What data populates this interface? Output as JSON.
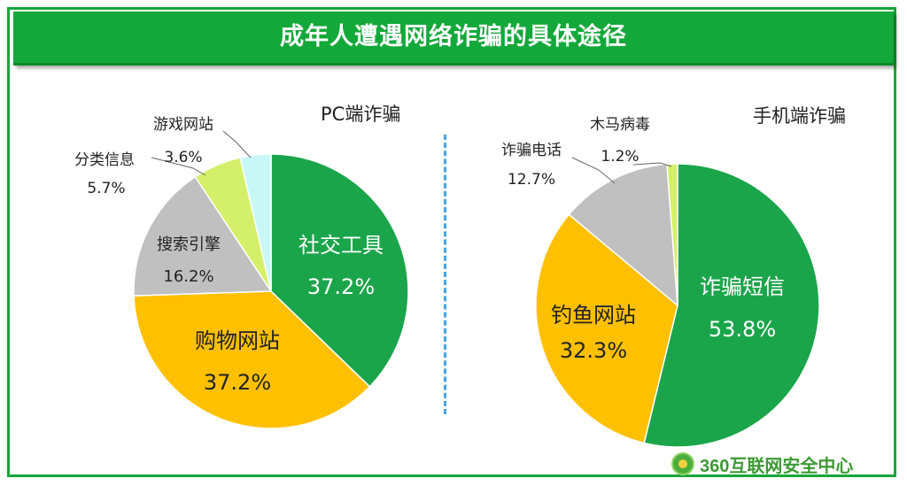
{
  "banner": {
    "title": "成年人遭遇网络诈骗的具体途径"
  },
  "brand": {
    "text": "360互联网安全中心",
    "icon": "360-shield-icon"
  },
  "colors": {
    "green": "#1aa54a",
    "orange": "#ffc000",
    "gray": "#c0c0c0",
    "lightgreen": "#d4f06a",
    "cyan": "#c8f7f7",
    "banner": "#13a83a"
  },
  "chart_data": [
    {
      "type": "pie",
      "title": "PC端诈骗",
      "slices": [
        {
          "name": "社交工具",
          "value": 37.2,
          "label": "37.2%",
          "color": "#1aa54a"
        },
        {
          "name": "购物网站",
          "value": 37.2,
          "label": "37.2%",
          "color": "#ffc000"
        },
        {
          "name": "搜索引擎",
          "value": 16.2,
          "label": "16.2%",
          "color": "#c0c0c0"
        },
        {
          "name": "分类信息",
          "value": 5.7,
          "label": "5.7%",
          "color": "#d4f06a"
        },
        {
          "name": "游戏网站",
          "value": 3.6,
          "label": "3.6%",
          "color": "#c8f7f7"
        }
      ]
    },
    {
      "type": "pie",
      "title": "手机端诈骗",
      "slices": [
        {
          "name": "诈骗短信",
          "value": 53.8,
          "label": "53.8%",
          "color": "#1aa54a"
        },
        {
          "name": "钓鱼网站",
          "value": 32.3,
          "label": "32.3%",
          "color": "#ffc000"
        },
        {
          "name": "诈骗电话",
          "value": 12.7,
          "label": "12.7%",
          "color": "#c0c0c0"
        },
        {
          "name": "木马病毒",
          "value": 1.2,
          "label": "1.2%",
          "color": "#d4f06a"
        }
      ]
    }
  ]
}
